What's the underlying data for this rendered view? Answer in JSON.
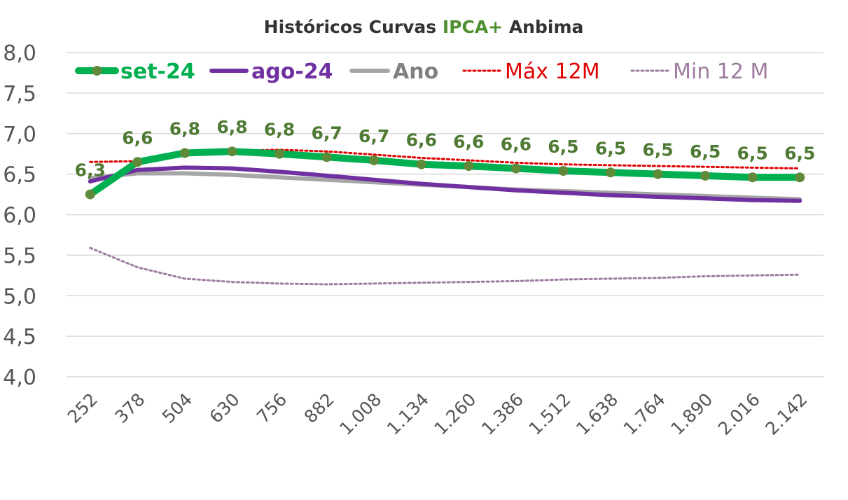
{
  "chart_data": {
    "type": "line",
    "title_parts": [
      "Históricos Curvas ",
      "IPCA+",
      " Anbima"
    ],
    "x": [
      "252",
      "378",
      "504",
      "630",
      "756",
      "882",
      "1.008",
      "1.134",
      "1.260",
      "1.386",
      "1.512",
      "1.638",
      "1.764",
      "1.890",
      "2.016",
      "2.142"
    ],
    "yticks": [
      "4,0",
      "4,5",
      "5,0",
      "5,5",
      "6,0",
      "6,5",
      "7,0",
      "7,5",
      "8,0"
    ],
    "ylim": [
      4.0,
      8.0
    ],
    "grid": true,
    "legend_position": "top",
    "series": [
      {
        "name": "set-24",
        "color": "#00b050",
        "marker_color": "#5f8a3a",
        "style": "thick-solid-markers",
        "values": [
          6.25,
          6.65,
          6.76,
          6.78,
          6.75,
          6.71,
          6.67,
          6.62,
          6.6,
          6.57,
          6.54,
          6.52,
          6.5,
          6.48,
          6.46,
          6.46
        ],
        "labels": [
          "6,3",
          "6,6",
          "6,8",
          "6,8",
          "6,8",
          "6,7",
          "6,7",
          "6,6",
          "6,6",
          "6,6",
          "6,5",
          "6,5",
          "6,5",
          "6,5",
          "6,5",
          "6,5"
        ]
      },
      {
        "name": "ago-24",
        "color": "#7030a0",
        "style": "solid",
        "values": [
          6.41,
          6.55,
          6.58,
          6.57,
          6.53,
          6.48,
          6.43,
          6.38,
          6.34,
          6.3,
          6.27,
          6.24,
          6.22,
          6.2,
          6.18,
          6.17
        ]
      },
      {
        "name": "Ano",
        "color": "#a6a6a6",
        "style": "solid",
        "values": [
          6.45,
          6.51,
          6.51,
          6.49,
          6.46,
          6.43,
          6.4,
          6.37,
          6.34,
          6.31,
          6.29,
          6.27,
          6.25,
          6.23,
          6.21,
          6.19
        ]
      },
      {
        "name": "Máx 12M",
        "color": "#e00000",
        "style": "dotted",
        "values": [
          6.65,
          6.66,
          6.73,
          6.79,
          6.8,
          6.78,
          6.74,
          6.7,
          6.67,
          6.64,
          6.62,
          6.61,
          6.6,
          6.59,
          6.58,
          6.57
        ]
      },
      {
        "name": "Min 12 M",
        "color": "#9e7ba0",
        "style": "dotted",
        "values": [
          5.59,
          5.35,
          5.21,
          5.17,
          5.15,
          5.14,
          5.15,
          5.16,
          5.17,
          5.18,
          5.2,
          5.21,
          5.22,
          5.24,
          5.25,
          5.26
        ]
      }
    ]
  }
}
